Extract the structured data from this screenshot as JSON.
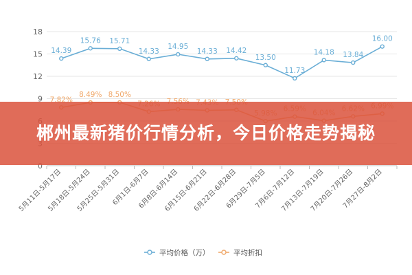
{
  "chart_data": {
    "type": "line",
    "categories": [
      "5月11日-5月17日",
      "5月18日-5月24日",
      "5月25日-5月31日",
      "6月1日-6月7日",
      "6月8日-6月14日",
      "6月15日-6月21日",
      "6月22日-6月28日",
      "6月29日-7月5日",
      "7月6日-7月12日",
      "7月13日-7月19日",
      "7月20日-7月26日",
      "7月27日-8月2日"
    ],
    "series": [
      {
        "name": "平均价格（万）",
        "values": [
          14.39,
          15.76,
          15.71,
          14.33,
          14.95,
          14.33,
          14.42,
          13.5,
          11.73,
          14.18,
          13.84,
          16.0
        ],
        "labels": [
          "14.39",
          "15.76",
          "15.71",
          "14.33",
          "14.95",
          "14.33",
          "14.42",
          "13.50",
          "11.73",
          "14.18",
          "13.84",
          "16.00"
        ],
        "color": "#6aaed6"
      },
      {
        "name": "平均折扣",
        "values": [
          7.82,
          8.49,
          8.5,
          7.26,
          7.56,
          7.43,
          7.5,
          5.98,
          6.59,
          6.04,
          6.62,
          6.99
        ],
        "labels": [
          "7.82%",
          "8.49%",
          "8.50%",
          "7.26%",
          "7.56%",
          "7.43%",
          "7.50%",
          "5.98%",
          "6.59%",
          "6.04%",
          "6.62%",
          "6.99%"
        ],
        "color": "#f0a86a"
      }
    ],
    "yticks": [
      "0",
      "3",
      "6",
      "9",
      "12",
      "15",
      "18"
    ],
    "ylim": [
      0,
      18
    ],
    "grid": true,
    "legend": "bottom-center"
  },
  "banner": {
    "title": "郴州最新猪价行情分析，今日价格走势揭秘"
  }
}
